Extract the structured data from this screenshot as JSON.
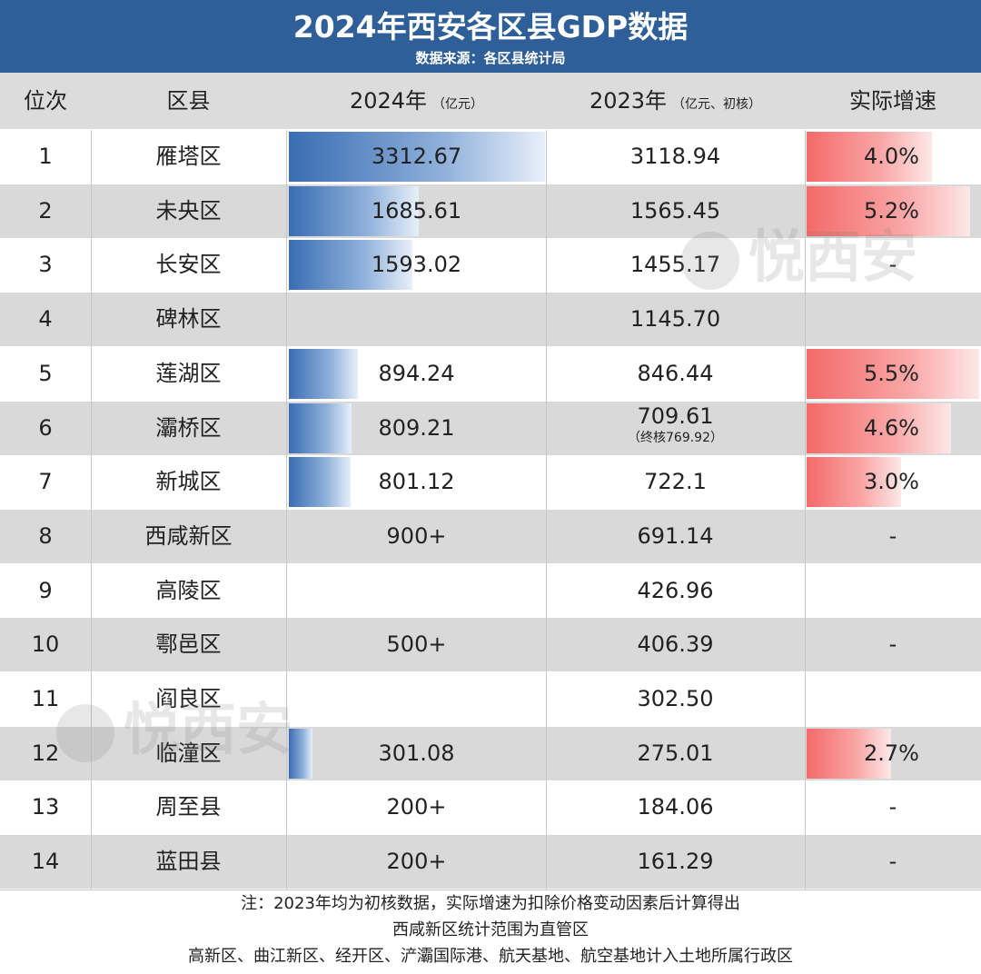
{
  "header": {
    "title": "2024年西安各区县GDP数据",
    "subtitle": "数据来源：各区县统计局"
  },
  "columns": {
    "rank": "位次",
    "district": "区县",
    "gdp2024": "2024年",
    "gdp2024_unit": "（亿元）",
    "gdp2023": "2023年",
    "gdp2023_unit": "（亿元、初核）",
    "growth": "实际增速"
  },
  "colors": {
    "header_bg": "#2f5f98",
    "bar_blue": "#3a6db3",
    "bar_red": "#f46a6a",
    "row_alt": "#d9d9d9"
  },
  "watermark": "悦西安",
  "chart_data": {
    "type": "table",
    "title": "2024年西安各区县GDP数据",
    "rows": [
      {
        "rank": "1",
        "district": "雁塔区",
        "gdp2024": "3312.67",
        "gdp2023": "3118.94",
        "gdp2023_note": "",
        "growth": "4.0%",
        "bar24": 3312.67,
        "bar_growth": 4.0
      },
      {
        "rank": "2",
        "district": "未央区",
        "gdp2024": "1685.61",
        "gdp2023": "1565.45",
        "gdp2023_note": "",
        "growth": "5.2%",
        "bar24": 1685.61,
        "bar_growth": 5.2
      },
      {
        "rank": "3",
        "district": "长安区",
        "gdp2024": "1593.02",
        "gdp2023": "1455.17",
        "gdp2023_note": "",
        "growth": "-",
        "bar24": 1593.02,
        "bar_growth": null
      },
      {
        "rank": "4",
        "district": "碑林区",
        "gdp2024": "",
        "gdp2023": "1145.70",
        "gdp2023_note": "",
        "growth": "",
        "bar24": null,
        "bar_growth": null
      },
      {
        "rank": "5",
        "district": "莲湖区",
        "gdp2024": "894.24",
        "gdp2023": "846.44",
        "gdp2023_note": "",
        "growth": "5.5%",
        "bar24": 894.24,
        "bar_growth": 5.5
      },
      {
        "rank": "6",
        "district": "灞桥区",
        "gdp2024": "809.21",
        "gdp2023": "709.61",
        "gdp2023_note": "（终核769.92）",
        "growth": "4.6%",
        "bar24": 809.21,
        "bar_growth": 4.6
      },
      {
        "rank": "7",
        "district": "新城区",
        "gdp2024": "801.12",
        "gdp2023": "722.1",
        "gdp2023_note": "",
        "growth": "3.0%",
        "bar24": 801.12,
        "bar_growth": 3.0
      },
      {
        "rank": "8",
        "district": "西咸新区",
        "gdp2024": "900+",
        "gdp2023": "691.14",
        "gdp2023_note": "",
        "growth": "-",
        "bar24": null,
        "bar_growth": null
      },
      {
        "rank": "9",
        "district": "高陵区",
        "gdp2024": "",
        "gdp2023": "426.96",
        "gdp2023_note": "",
        "growth": "",
        "bar24": null,
        "bar_growth": null
      },
      {
        "rank": "10",
        "district": "鄠邑区",
        "gdp2024": "500+",
        "gdp2023": "406.39",
        "gdp2023_note": "",
        "growth": "-",
        "bar24": null,
        "bar_growth": null
      },
      {
        "rank": "11",
        "district": "阎良区",
        "gdp2024": "",
        "gdp2023": "302.50",
        "gdp2023_note": "",
        "growth": "",
        "bar24": null,
        "bar_growth": null
      },
      {
        "rank": "12",
        "district": "临潼区",
        "gdp2024": "301.08",
        "gdp2023": "275.01",
        "gdp2023_note": "",
        "growth": "2.7%",
        "bar24": 301.08,
        "bar_growth": 2.7
      },
      {
        "rank": "13",
        "district": "周至县",
        "gdp2024": "200+",
        "gdp2023": "184.06",
        "gdp2023_note": "",
        "growth": "-",
        "bar24": null,
        "bar_growth": null
      },
      {
        "rank": "14",
        "district": "蓝田县",
        "gdp2024": "200+",
        "gdp2023": "161.29",
        "gdp2023_note": "",
        "growth": "-",
        "bar24": null,
        "bar_growth": null
      }
    ]
  },
  "footer": {
    "line1": "注：2023年均为初核数据，实际增速为扣除价格变动因素后计算得出",
    "line2": "西咸新区统计范围为直管区",
    "line3": "高新区、曲江新区、经开区、浐灞国际港、航天基地、航空基地计入土地所属行政区"
  }
}
